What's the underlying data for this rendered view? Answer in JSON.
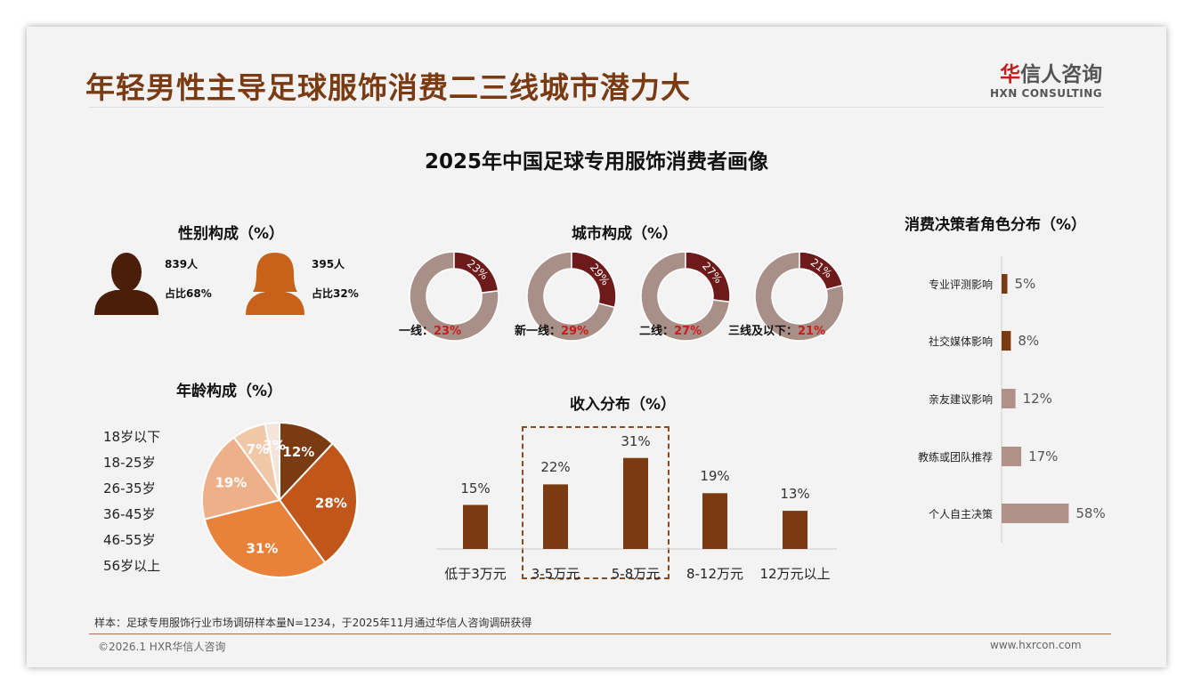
{
  "title": "年轻男性主导足球服饰消费二三线城市潜力大",
  "logo": {
    "cn_first": "华",
    "cn_rest": "信人咨询",
    "en": "HXN CONSULTING"
  },
  "main_title": "2025年中国足球专用服饰消费者画像",
  "gender": {
    "title": "性别构成（%）",
    "male": {
      "count": "839人",
      "share": "占比68%"
    },
    "female": {
      "count": "395人",
      "share": "占比32%"
    }
  },
  "city": {
    "title": "城市构成（%）",
    "items": [
      {
        "label": "一线：",
        "value": 23,
        "pct": "23%"
      },
      {
        "label": "新一线：",
        "value": 29,
        "pct": "29%"
      },
      {
        "label": "二线：",
        "value": 27,
        "pct": "27%"
      },
      {
        "label": "三线及以下：",
        "value": 21,
        "pct": "21%"
      }
    ],
    "colors": {
      "main": "#6e1a1a",
      "rest": "#a89088",
      "label": "#d01818"
    }
  },
  "chart_data": [
    {
      "type": "pie",
      "title": "年龄构成（%）",
      "categories": [
        "18岁以下",
        "18-25岁",
        "26-35岁",
        "36-45岁",
        "46-55岁",
        "56岁以上"
      ],
      "values": [
        12,
        28,
        31,
        19,
        7,
        3
      ],
      "labels": [
        "12%",
        "28%",
        "31%",
        "19%",
        "7%",
        "3%"
      ],
      "colors": [
        "#7a3a12",
        "#c0561a",
        "#e8823a",
        "#eeb088",
        "#f0c8a8",
        "#f5e4da"
      ],
      "legend": "left"
    },
    {
      "type": "bar",
      "title": "收入分布（%）",
      "categories": [
        "低于3万元",
        "3-5万元",
        "5-8万元",
        "8-12万元",
        "12万元以上"
      ],
      "values": [
        15,
        22,
        31,
        19,
        13
      ],
      "labels": [
        "15%",
        "22%",
        "31%",
        "19%",
        "13%"
      ],
      "highlight": [
        "3-5万元",
        "5-8万元"
      ],
      "color": "#7a3a12"
    },
    {
      "type": "bar",
      "orientation": "horizontal",
      "title": "消费决策者角色分布（%）",
      "categories": [
        "专业评测影响",
        "社交媒体影响",
        "亲友建议影响",
        "教练或团队推荐",
        "个人自主决策"
      ],
      "values": [
        5,
        8,
        12,
        17,
        58
      ],
      "labels": [
        "5%",
        "8%",
        "12%",
        "17%",
        "58%"
      ],
      "colors": [
        "#7a3a12",
        "#7a3a12",
        "#b09088",
        "#b09088",
        "#b09088"
      ]
    }
  ],
  "note": "样本：足球专用服饰行业市场调研样本量N=1234，于2025年11月通过华信人咨询调研获得",
  "footer": {
    "left": "©2026.1 HXR华信人咨询",
    "right": "www.hxrcon.com"
  }
}
